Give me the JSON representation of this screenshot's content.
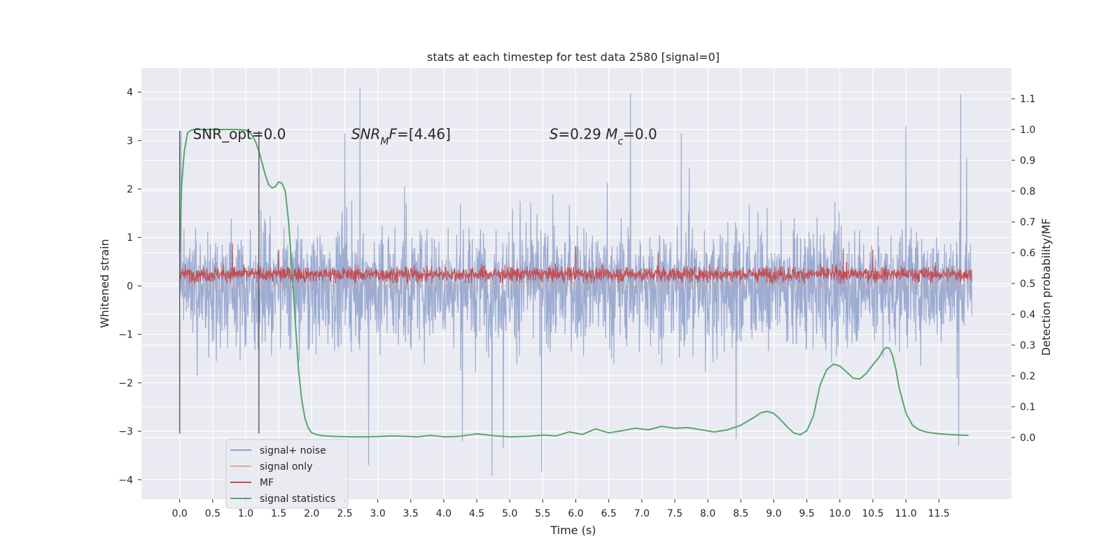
{
  "chart_data": {
    "type": "line",
    "title": "stats at each timestep for test data 2580 [signal=0]",
    "xlabel": "Time (s)",
    "ylabel": "Whitened strain",
    "y2label": "Detection probability/MF",
    "xlim": [
      -0.58,
      12.6
    ],
    "ylim": [
      -4.4,
      4.5
    ],
    "y2lim": [
      -0.2,
      1.2
    ],
    "grid": true,
    "background": "#eaeaf2",
    "x_ticks": [
      0.0,
      0.5,
      1.0,
      1.5,
      2.0,
      2.5,
      3.0,
      3.5,
      4.0,
      4.5,
      5.0,
      5.5,
      6.0,
      6.5,
      7.0,
      7.5,
      8.0,
      8.5,
      9.0,
      9.5,
      10.0,
      10.5,
      11.0,
      11.5
    ],
    "x_tick_labels": [
      "0.0",
      "0.5",
      "1.0",
      "1.5",
      "2.0",
      "2.5",
      "3.0",
      "3.5",
      "4.0",
      "4.5",
      "5.0",
      "5.5",
      "6.0",
      "6.5",
      "7.0",
      "7.5",
      "8.0",
      "8.5",
      "9.0",
      "9.5",
      "10.0",
      "10.5",
      "11.0",
      "11.5"
    ],
    "y_ticks": [
      -4,
      -3,
      -2,
      -1,
      0,
      1,
      2,
      3,
      4
    ],
    "y_tick_labels": [
      "−4",
      "−3",
      "−2",
      "−1",
      "0",
      "1",
      "2",
      "3",
      "4"
    ],
    "y2_ticks": [
      0.0,
      0.1,
      0.2,
      0.3,
      0.4,
      0.5,
      0.6,
      0.7,
      0.8,
      0.9,
      1.0,
      1.1
    ],
    "y2_tick_labels": [
      "0.0",
      "0.1",
      "0.2",
      "0.3",
      "0.4",
      "0.5",
      "0.6",
      "0.7",
      "0.8",
      "0.9",
      "1.0",
      "1.1"
    ],
    "annotations": [
      {
        "id": "snr-opt",
        "parts": [
          {
            "text": "SNR_opt=0.0"
          }
        ],
        "x": 0.2,
        "y": 3.15
      },
      {
        "id": "snr-mf",
        "parts": [
          {
            "text": "SNR",
            "italic": true
          },
          {
            "text": "M",
            "italic": true,
            "sub": true
          },
          {
            "text": "F",
            "italic": true
          },
          {
            "text": "=[4.46]"
          }
        ],
        "x": 2.6,
        "y": 3.15
      },
      {
        "id": "s-stat",
        "parts": [
          {
            "text": "S",
            "italic": true
          },
          {
            "text": "=0.29   "
          },
          {
            "text": "M",
            "italic": true
          },
          {
            "text": "c",
            "italic": true,
            "sub": true
          },
          {
            "text": "=0.0"
          }
        ],
        "x": 5.6,
        "y": 3.15
      }
    ],
    "vertical_markers": [
      {
        "x": 0.0,
        "y_range": [
          -3.05,
          3.2
        ]
      },
      {
        "x": 1.2,
        "y_range": [
          -3.05,
          3.2
        ]
      }
    ],
    "series": [
      {
        "name": "signal+ noise",
        "axis": "left",
        "color": "#8da0cb",
        "x_range": [
          0.0,
          12.0
        ],
        "points": 2400,
        "envelope_typical": [
          -1.9,
          2.0
        ],
        "spikes": [
          {
            "x": 2.73,
            "y": 4.1
          },
          {
            "x": 6.83,
            "y": 3.97
          },
          {
            "x": 11.83,
            "y": 3.96
          },
          {
            "x": 11.0,
            "y": 3.3
          },
          {
            "x": 7.6,
            "y": 3.15
          },
          {
            "x": 2.5,
            "y": 3.15
          },
          {
            "x": 0.02,
            "y": 3.2
          },
          {
            "x": 4.73,
            "y": -3.92
          },
          {
            "x": 5.48,
            "y": -3.83
          },
          {
            "x": 2.86,
            "y": -3.7
          },
          {
            "x": 4.9,
            "y": -3.35
          },
          {
            "x": 4.28,
            "y": -3.2
          },
          {
            "x": 8.43,
            "y": -3.15
          },
          {
            "x": 11.8,
            "y": -3.3
          }
        ]
      },
      {
        "name": "signal only",
        "axis": "left",
        "color": "#e8a88a",
        "x": [
          0.0,
          12.0
        ],
        "y": [
          0.0,
          0.0
        ]
      },
      {
        "name": "MF",
        "axis": "right",
        "color": "#c44e52",
        "x_range": [
          0.0,
          12.0
        ],
        "points": 2400,
        "base": 0.53,
        "band": [
          0.5,
          0.58
        ],
        "spikes": [
          {
            "x": 0.8,
            "y": 0.63
          },
          {
            "x": 1.5,
            "y": 0.61
          },
          {
            "x": 6.0,
            "y": 0.62
          },
          {
            "x": 10.05,
            "y": 0.61
          },
          {
            "x": 10.5,
            "y": 0.61
          },
          {
            "x": 7.25,
            "y": 0.6
          }
        ]
      },
      {
        "name": "signal statistics",
        "axis": "right",
        "color": "#55a868",
        "x": [
          0.0,
          0.03,
          0.07,
          0.12,
          0.17,
          0.22,
          0.3,
          0.5,
          0.7,
          0.85,
          0.95,
          1.0,
          1.05,
          1.1,
          1.15,
          1.2,
          1.25,
          1.3,
          1.35,
          1.4,
          1.45,
          1.5,
          1.55,
          1.6,
          1.65,
          1.7,
          1.75,
          1.8,
          1.85,
          1.9,
          1.95,
          2.0,
          2.1,
          2.2,
          2.4,
          2.6,
          2.8,
          3.0,
          3.2,
          3.4,
          3.6,
          3.8,
          4.0,
          4.2,
          4.5,
          4.8,
          5.0,
          5.3,
          5.5,
          5.7,
          5.9,
          6.1,
          6.3,
          6.5,
          6.7,
          6.9,
          7.1,
          7.3,
          7.5,
          7.7,
          7.9,
          8.1,
          8.3,
          8.5,
          8.7,
          8.8,
          8.9,
          9.0,
          9.1,
          9.2,
          9.3,
          9.4,
          9.5,
          9.6,
          9.7,
          9.8,
          9.9,
          10.0,
          10.1,
          10.2,
          10.3,
          10.4,
          10.5,
          10.6,
          10.65,
          10.7,
          10.75,
          10.8,
          10.85,
          10.9,
          11.0,
          11.1,
          11.2,
          11.3,
          11.5,
          11.7,
          11.9,
          11.95
        ],
        "y": [
          0.6,
          0.82,
          0.93,
          0.99,
          0.998,
          1.0,
          1.0,
          1.0,
          1.0,
          1.0,
          0.999,
          0.998,
          0.995,
          0.98,
          0.96,
          0.93,
          0.89,
          0.85,
          0.82,
          0.81,
          0.815,
          0.83,
          0.825,
          0.8,
          0.7,
          0.55,
          0.38,
          0.22,
          0.12,
          0.06,
          0.03,
          0.015,
          0.008,
          0.005,
          0.003,
          0.002,
          0.002,
          0.003,
          0.005,
          0.004,
          0.002,
          0.007,
          0.002,
          0.003,
          0.012,
          0.005,
          0.002,
          0.004,
          0.008,
          0.005,
          0.018,
          0.01,
          0.028,
          0.015,
          0.022,
          0.03,
          0.025,
          0.036,
          0.03,
          0.032,
          0.025,
          0.018,
          0.025,
          0.04,
          0.065,
          0.08,
          0.085,
          0.078,
          0.058,
          0.035,
          0.015,
          0.009,
          0.022,
          0.07,
          0.17,
          0.22,
          0.238,
          0.232,
          0.213,
          0.193,
          0.19,
          0.208,
          0.236,
          0.262,
          0.282,
          0.292,
          0.29,
          0.265,
          0.22,
          0.16,
          0.08,
          0.04,
          0.025,
          0.018,
          0.012,
          0.009,
          0.007,
          0.007
        ]
      }
    ],
    "legend": {
      "placement": "lower-left",
      "entries": [
        {
          "label": "signal+ noise",
          "color": "#8da0cb"
        },
        {
          "label": "signal only",
          "color": "#e8a88a"
        },
        {
          "label": "MF",
          "color": "#c44e52"
        },
        {
          "label": "signal statistics",
          "color": "#55a868"
        }
      ]
    }
  }
}
